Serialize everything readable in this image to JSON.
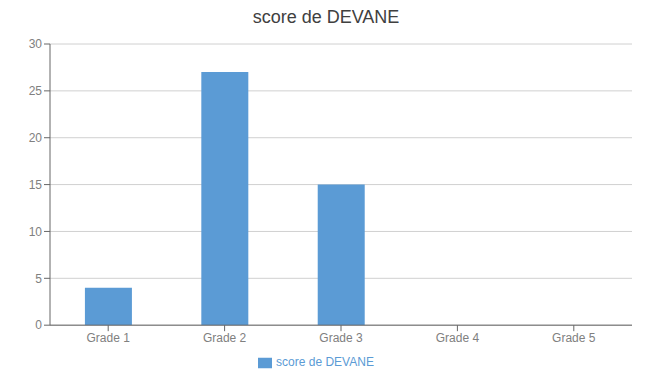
{
  "chart_data": {
    "type": "bar",
    "title": "score de DEVANE",
    "categories": [
      "Grade 1",
      "Grade 2",
      "Grade 3",
      "Grade 4",
      "Grade 5"
    ],
    "series": [
      {
        "name": "score de DEVANE",
        "color": "#5B9BD5",
        "values": [
          4,
          27,
          15,
          0,
          0
        ]
      }
    ],
    "ylim": [
      0,
      30
    ],
    "yticks": [
      0,
      5,
      10,
      15,
      20,
      25,
      30
    ],
    "grid": true,
    "legend": "bottom"
  }
}
